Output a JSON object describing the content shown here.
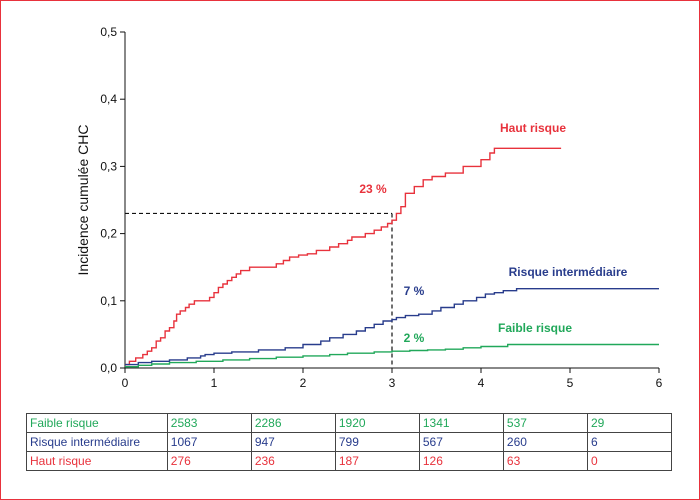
{
  "chart_data": {
    "type": "line",
    "subtype": "step",
    "ylabel": "Incidence cumulée CHC",
    "xlabel": "",
    "xlim": [
      0,
      6
    ],
    "ylim": [
      0,
      0.5
    ],
    "x_ticks": [
      "0",
      "1",
      "2",
      "3",
      "4",
      "5",
      "6"
    ],
    "y_ticks": [
      "0,0",
      "0,1",
      "0,2",
      "0,3",
      "0,4",
      "0,5"
    ],
    "grid": false,
    "series": [
      {
        "name": "Haut risque",
        "color": "#e8323c",
        "points": [
          [
            0,
            0.005
          ],
          [
            0.05,
            0.01
          ],
          [
            0.12,
            0.015
          ],
          [
            0.2,
            0.02
          ],
          [
            0.25,
            0.025
          ],
          [
            0.3,
            0.03
          ],
          [
            0.35,
            0.04
          ],
          [
            0.4,
            0.045
          ],
          [
            0.45,
            0.055
          ],
          [
            0.5,
            0.06
          ],
          [
            0.55,
            0.07
          ],
          [
            0.58,
            0.08
          ],
          [
            0.62,
            0.085
          ],
          [
            0.68,
            0.09
          ],
          [
            0.72,
            0.095
          ],
          [
            0.78,
            0.1
          ],
          [
            0.9,
            0.1
          ],
          [
            0.95,
            0.105
          ],
          [
            1.0,
            0.112
          ],
          [
            1.05,
            0.12
          ],
          [
            1.1,
            0.125
          ],
          [
            1.15,
            0.13
          ],
          [
            1.2,
            0.135
          ],
          [
            1.25,
            0.14
          ],
          [
            1.3,
            0.145
          ],
          [
            1.4,
            0.15
          ],
          [
            1.65,
            0.15
          ],
          [
            1.7,
            0.155
          ],
          [
            1.78,
            0.16
          ],
          [
            1.85,
            0.165
          ],
          [
            1.95,
            0.168
          ],
          [
            2.05,
            0.17
          ],
          [
            2.15,
            0.175
          ],
          [
            2.3,
            0.18
          ],
          [
            2.4,
            0.185
          ],
          [
            2.5,
            0.19
          ],
          [
            2.55,
            0.195
          ],
          [
            2.7,
            0.2
          ],
          [
            2.8,
            0.205
          ],
          [
            2.88,
            0.21
          ],
          [
            2.95,
            0.215
          ],
          [
            3.0,
            0.22
          ],
          [
            3.05,
            0.23
          ],
          [
            3.1,
            0.24
          ],
          [
            3.15,
            0.26
          ],
          [
            3.25,
            0.27
          ],
          [
            3.35,
            0.28
          ],
          [
            3.45,
            0.285
          ],
          [
            3.6,
            0.29
          ],
          [
            3.8,
            0.3
          ],
          [
            4.0,
            0.31
          ],
          [
            4.1,
            0.32
          ],
          [
            4.15,
            0.327
          ],
          [
            4.4,
            0.327
          ],
          [
            4.9,
            0.327
          ]
        ],
        "annotation": "23 %"
      },
      {
        "name": "Risque intermédiaire",
        "color": "#283c8c",
        "points": [
          [
            0,
            0.005
          ],
          [
            0.15,
            0.008
          ],
          [
            0.3,
            0.01
          ],
          [
            0.5,
            0.012
          ],
          [
            0.7,
            0.015
          ],
          [
            0.85,
            0.018
          ],
          [
            0.9,
            0.02
          ],
          [
            1.0,
            0.022
          ],
          [
            1.2,
            0.024
          ],
          [
            1.5,
            0.027
          ],
          [
            1.8,
            0.03
          ],
          [
            2.0,
            0.035
          ],
          [
            2.2,
            0.04
          ],
          [
            2.3,
            0.045
          ],
          [
            2.45,
            0.05
          ],
          [
            2.6,
            0.055
          ],
          [
            2.7,
            0.06
          ],
          [
            2.8,
            0.065
          ],
          [
            2.9,
            0.07
          ],
          [
            3.0,
            0.072
          ],
          [
            3.05,
            0.075
          ],
          [
            3.15,
            0.078
          ],
          [
            3.3,
            0.08
          ],
          [
            3.45,
            0.085
          ],
          [
            3.55,
            0.09
          ],
          [
            3.7,
            0.095
          ],
          [
            3.8,
            0.1
          ],
          [
            3.95,
            0.105
          ],
          [
            4.05,
            0.11
          ],
          [
            4.15,
            0.112
          ],
          [
            4.25,
            0.115
          ],
          [
            4.4,
            0.118
          ],
          [
            5.0,
            0.118
          ],
          [
            6.0,
            0.118
          ]
        ],
        "annotation": "7 %"
      },
      {
        "name": "Faible risque",
        "color": "#21a85a",
        "points": [
          [
            0,
            0.002
          ],
          [
            0.15,
            0.004
          ],
          [
            0.3,
            0.006
          ],
          [
            0.5,
            0.008
          ],
          [
            0.8,
            0.01
          ],
          [
            1.1,
            0.012
          ],
          [
            1.4,
            0.014
          ],
          [
            1.7,
            0.016
          ],
          [
            2.0,
            0.018
          ],
          [
            2.3,
            0.02
          ],
          [
            2.5,
            0.022
          ],
          [
            2.8,
            0.024
          ],
          [
            3.0,
            0.025
          ],
          [
            3.2,
            0.026
          ],
          [
            3.4,
            0.027
          ],
          [
            3.6,
            0.028
          ],
          [
            3.8,
            0.03
          ],
          [
            4.0,
            0.032
          ],
          [
            4.3,
            0.035
          ],
          [
            5.0,
            0.035
          ],
          [
            6.0,
            0.035
          ]
        ],
        "annotation": "2 %"
      }
    ],
    "reference": {
      "x": 3,
      "y": 0.23
    }
  },
  "risk_table": {
    "rows": [
      {
        "label": "Faible risque",
        "color": "#21a85a",
        "values": [
          "2583",
          "2286",
          "1920",
          "1341",
          "537",
          "29"
        ]
      },
      {
        "label": "Risque intermédiaire",
        "color": "#283c8c",
        "values": [
          "1067",
          "947",
          "799",
          "567",
          "260",
          "6"
        ]
      },
      {
        "label": "Haut risque",
        "color": "#e8323c",
        "values": [
          "276",
          "236",
          "187",
          "126",
          "63",
          "0"
        ]
      }
    ]
  }
}
